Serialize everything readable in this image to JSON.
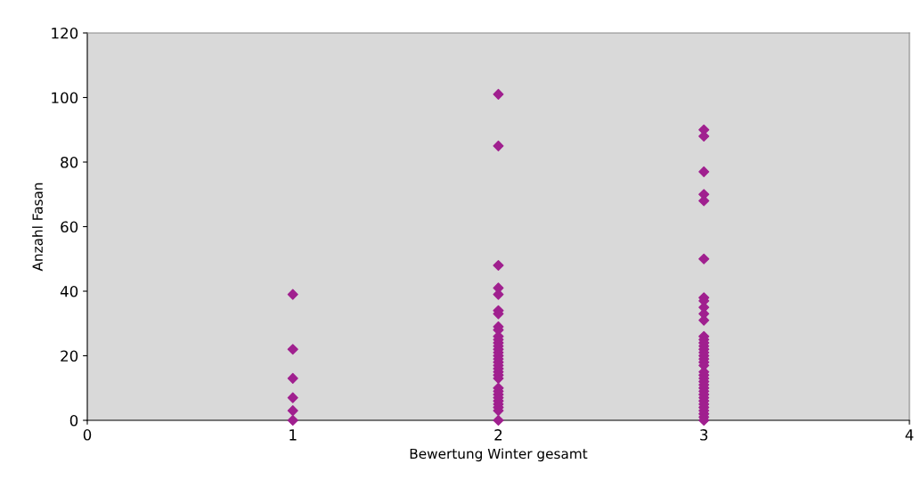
{
  "chart_data": {
    "type": "scatter",
    "xlabel": "Bewertung Winter gesamt",
    "ylabel": "Anzahl Fasan",
    "xlim": [
      0,
      4
    ],
    "xticks": [
      0,
      1,
      2,
      3,
      4
    ],
    "ylim": [
      0,
      120
    ],
    "yticks": [
      0,
      20,
      40,
      60,
      80,
      100,
      120
    ],
    "grid": false,
    "legend": false,
    "marker": "diamond",
    "series": [
      {
        "color": "#a0208f",
        "x": [
          1,
          1,
          1,
          1,
          1,
          1,
          2,
          2,
          2,
          2,
          2,
          2,
          2,
          2,
          2,
          2,
          2,
          2,
          2,
          2,
          2,
          2,
          2,
          2,
          2,
          2,
          2,
          2,
          2,
          2,
          2,
          2,
          2,
          2,
          2,
          2,
          2,
          2,
          3,
          3,
          3,
          3,
          3,
          3,
          3,
          3,
          3,
          3,
          3,
          3,
          3,
          3,
          3,
          3,
          3,
          3,
          3,
          3,
          3,
          3,
          3,
          3,
          3,
          3,
          3,
          3,
          3,
          3,
          3,
          3,
          3,
          3,
          3,
          3,
          3
        ],
        "values": [
          39,
          22,
          13,
          7,
          3,
          0,
          101,
          85,
          48,
          41,
          39,
          34,
          33,
          29,
          28,
          26,
          25,
          24,
          23,
          22,
          21,
          20,
          19,
          18,
          17,
          16,
          15,
          14,
          13,
          10,
          9,
          8,
          7,
          6,
          5,
          4,
          3,
          0,
          90,
          88,
          77,
          70,
          68,
          50,
          38,
          37,
          35,
          33,
          31,
          26,
          25,
          24,
          23,
          22,
          21,
          20,
          19,
          18,
          17,
          15,
          14,
          13,
          12,
          11,
          10,
          9,
          8,
          7,
          6,
          5,
          4,
          3,
          2,
          1,
          0
        ]
      }
    ]
  }
}
